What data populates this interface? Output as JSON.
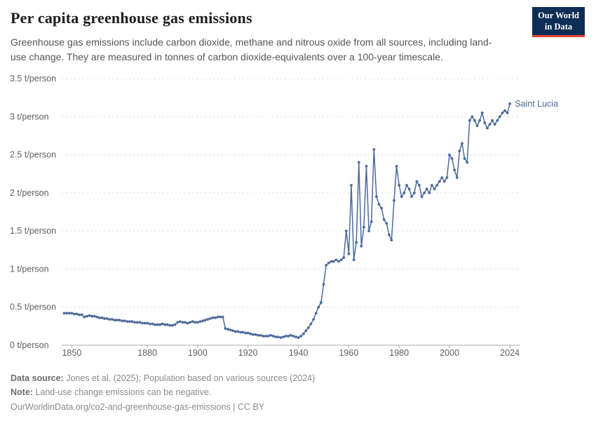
{
  "header": {
    "title": "Per capita greenhouse gas emissions",
    "subtitle": "Greenhouse gas emissions include carbon dioxide, methane and nitrous oxide from all sources, including land-use change. They are measured in tonnes of carbon dioxide-equivalents over a 100-year timescale.",
    "logo": {
      "line1": "Our World",
      "line2": "in Data"
    }
  },
  "footer": {
    "source_label": "Data source:",
    "source_text": " Jones et al. (2025); Population based on various sources (2024)",
    "note_label": "Note:",
    "note_text": " Land-use change emissions can be negative.",
    "url_text": "OurWorldinData.org/co2-and-greenhouse-gas-emissions | CC BY"
  },
  "chart_data": {
    "type": "line",
    "title": "Per capita greenhouse gas emissions",
    "unit": "t/person",
    "xlim": [
      1846,
      2027
    ],
    "ylim": [
      0,
      3.5
    ],
    "grid": "dotted-horizontal",
    "marker": "circle",
    "legend_position": "end-of-line-label",
    "x_ticks": [
      1850,
      1880,
      1900,
      1920,
      1940,
      1960,
      1980,
      2000,
      2024
    ],
    "y_ticks": [
      {
        "v": 0,
        "label": "0 t/person"
      },
      {
        "v": 0.5,
        "label": "0.5 t/person"
      },
      {
        "v": 1,
        "label": "1 t/person"
      },
      {
        "v": 1.5,
        "label": "1.5 t/person"
      },
      {
        "v": 2,
        "label": "2 t/person"
      },
      {
        "v": 2.5,
        "label": "2.5 t/person"
      },
      {
        "v": 3,
        "label": "3 t/person"
      },
      {
        "v": 3.5,
        "label": "3.5 t/person"
      }
    ],
    "series": [
      {
        "name": "Saint Lucia",
        "color": "#4c6a9c",
        "points": [
          [
            1847,
            0.42
          ],
          [
            1848,
            0.42
          ],
          [
            1849,
            0.42
          ],
          [
            1850,
            0.42
          ],
          [
            1851,
            0.41
          ],
          [
            1852,
            0.41
          ],
          [
            1853,
            0.4
          ],
          [
            1854,
            0.4
          ],
          [
            1855,
            0.37
          ],
          [
            1856,
            0.38
          ],
          [
            1857,
            0.39
          ],
          [
            1858,
            0.38
          ],
          [
            1859,
            0.38
          ],
          [
            1860,
            0.37
          ],
          [
            1861,
            0.36
          ],
          [
            1862,
            0.36
          ],
          [
            1863,
            0.35
          ],
          [
            1864,
            0.35
          ],
          [
            1865,
            0.34
          ],
          [
            1866,
            0.34
          ],
          [
            1867,
            0.33
          ],
          [
            1868,
            0.33
          ],
          [
            1869,
            0.33
          ],
          [
            1870,
            0.32
          ],
          [
            1871,
            0.32
          ],
          [
            1872,
            0.31
          ],
          [
            1873,
            0.31
          ],
          [
            1874,
            0.31
          ],
          [
            1875,
            0.3
          ],
          [
            1876,
            0.3
          ],
          [
            1877,
            0.3
          ],
          [
            1878,
            0.29
          ],
          [
            1879,
            0.29
          ],
          [
            1880,
            0.29
          ],
          [
            1881,
            0.28
          ],
          [
            1882,
            0.28
          ],
          [
            1883,
            0.27
          ],
          [
            1884,
            0.27
          ],
          [
            1885,
            0.27
          ],
          [
            1886,
            0.28
          ],
          [
            1887,
            0.27
          ],
          [
            1888,
            0.27
          ],
          [
            1889,
            0.26
          ],
          [
            1890,
            0.26
          ],
          [
            1891,
            0.27
          ],
          [
            1892,
            0.3
          ],
          [
            1893,
            0.31
          ],
          [
            1894,
            0.3
          ],
          [
            1895,
            0.3
          ],
          [
            1896,
            0.29
          ],
          [
            1897,
            0.3
          ],
          [
            1898,
            0.31
          ],
          [
            1899,
            0.3
          ],
          [
            1900,
            0.3
          ],
          [
            1901,
            0.31
          ],
          [
            1902,
            0.32
          ],
          [
            1903,
            0.33
          ],
          [
            1904,
            0.34
          ],
          [
            1905,
            0.35
          ],
          [
            1906,
            0.36
          ],
          [
            1907,
            0.36
          ],
          [
            1908,
            0.37
          ],
          [
            1909,
            0.37
          ],
          [
            1910,
            0.37
          ],
          [
            1911,
            0.22
          ],
          [
            1912,
            0.21
          ],
          [
            1913,
            0.2
          ],
          [
            1914,
            0.19
          ],
          [
            1915,
            0.18
          ],
          [
            1916,
            0.18
          ],
          [
            1917,
            0.17
          ],
          [
            1918,
            0.17
          ],
          [
            1919,
            0.16
          ],
          [
            1920,
            0.16
          ],
          [
            1921,
            0.15
          ],
          [
            1922,
            0.14
          ],
          [
            1923,
            0.14
          ],
          [
            1924,
            0.13
          ],
          [
            1925,
            0.13
          ],
          [
            1926,
            0.12
          ],
          [
            1927,
            0.12
          ],
          [
            1928,
            0.12
          ],
          [
            1929,
            0.13
          ],
          [
            1930,
            0.12
          ],
          [
            1931,
            0.11
          ],
          [
            1932,
            0.11
          ],
          [
            1933,
            0.1
          ],
          [
            1934,
            0.11
          ],
          [
            1935,
            0.12
          ],
          [
            1936,
            0.12
          ],
          [
            1937,
            0.13
          ],
          [
            1938,
            0.12
          ],
          [
            1939,
            0.11
          ],
          [
            1940,
            0.1
          ],
          [
            1941,
            0.12
          ],
          [
            1942,
            0.15
          ],
          [
            1943,
            0.19
          ],
          [
            1944,
            0.23
          ],
          [
            1945,
            0.28
          ],
          [
            1946,
            0.34
          ],
          [
            1947,
            0.42
          ],
          [
            1948,
            0.5
          ],
          [
            1949,
            0.56
          ],
          [
            1950,
            0.8
          ],
          [
            1951,
            1.05
          ],
          [
            1952,
            1.08
          ],
          [
            1953,
            1.1
          ],
          [
            1954,
            1.1
          ],
          [
            1955,
            1.12
          ],
          [
            1956,
            1.1
          ],
          [
            1957,
            1.12
          ],
          [
            1958,
            1.15
          ],
          [
            1959,
            1.5
          ],
          [
            1960,
            1.2
          ],
          [
            1961,
            2.1
          ],
          [
            1962,
            1.12
          ],
          [
            1963,
            1.35
          ],
          [
            1964,
            2.4
          ],
          [
            1965,
            1.3
          ],
          [
            1966,
            1.55
          ],
          [
            1967,
            2.35
          ],
          [
            1968,
            1.5
          ],
          [
            1969,
            1.62
          ],
          [
            1970,
            2.57
          ],
          [
            1971,
            1.95
          ],
          [
            1972,
            1.85
          ],
          [
            1973,
            1.8
          ],
          [
            1974,
            1.65
          ],
          [
            1975,
            1.6
          ],
          [
            1976,
            1.45
          ],
          [
            1977,
            1.38
          ],
          [
            1978,
            1.9
          ],
          [
            1979,
            2.35
          ],
          [
            1980,
            2.1
          ],
          [
            1981,
            1.95
          ],
          [
            1982,
            2.0
          ],
          [
            1983,
            2.1
          ],
          [
            1984,
            2.05
          ],
          [
            1985,
            1.95
          ],
          [
            1986,
            2.0
          ],
          [
            1987,
            2.15
          ],
          [
            1988,
            2.1
          ],
          [
            1989,
            1.95
          ],
          [
            1990,
            2.0
          ],
          [
            1991,
            2.05
          ],
          [
            1992,
            2.0
          ],
          [
            1993,
            2.1
          ],
          [
            1994,
            2.05
          ],
          [
            1995,
            2.1
          ],
          [
            1996,
            2.15
          ],
          [
            1997,
            2.2
          ],
          [
            1998,
            2.15
          ],
          [
            1999,
            2.2
          ],
          [
            2000,
            2.5
          ],
          [
            2001,
            2.45
          ],
          [
            2002,
            2.3
          ],
          [
            2003,
            2.2
          ],
          [
            2004,
            2.55
          ],
          [
            2005,
            2.65
          ],
          [
            2006,
            2.45
          ],
          [
            2007,
            2.4
          ],
          [
            2008,
            2.95
          ],
          [
            2009,
            3.0
          ],
          [
            2010,
            2.95
          ],
          [
            2011,
            2.88
          ],
          [
            2012,
            2.95
          ],
          [
            2013,
            3.05
          ],
          [
            2014,
            2.92
          ],
          [
            2015,
            2.85
          ],
          [
            2016,
            2.9
          ],
          [
            2017,
            2.95
          ],
          [
            2018,
            2.9
          ],
          [
            2019,
            2.95
          ],
          [
            2020,
            3.0
          ],
          [
            2021,
            3.05
          ],
          [
            2022,
            3.08
          ],
          [
            2023,
            3.05
          ],
          [
            2024,
            3.17
          ]
        ]
      }
    ]
  }
}
